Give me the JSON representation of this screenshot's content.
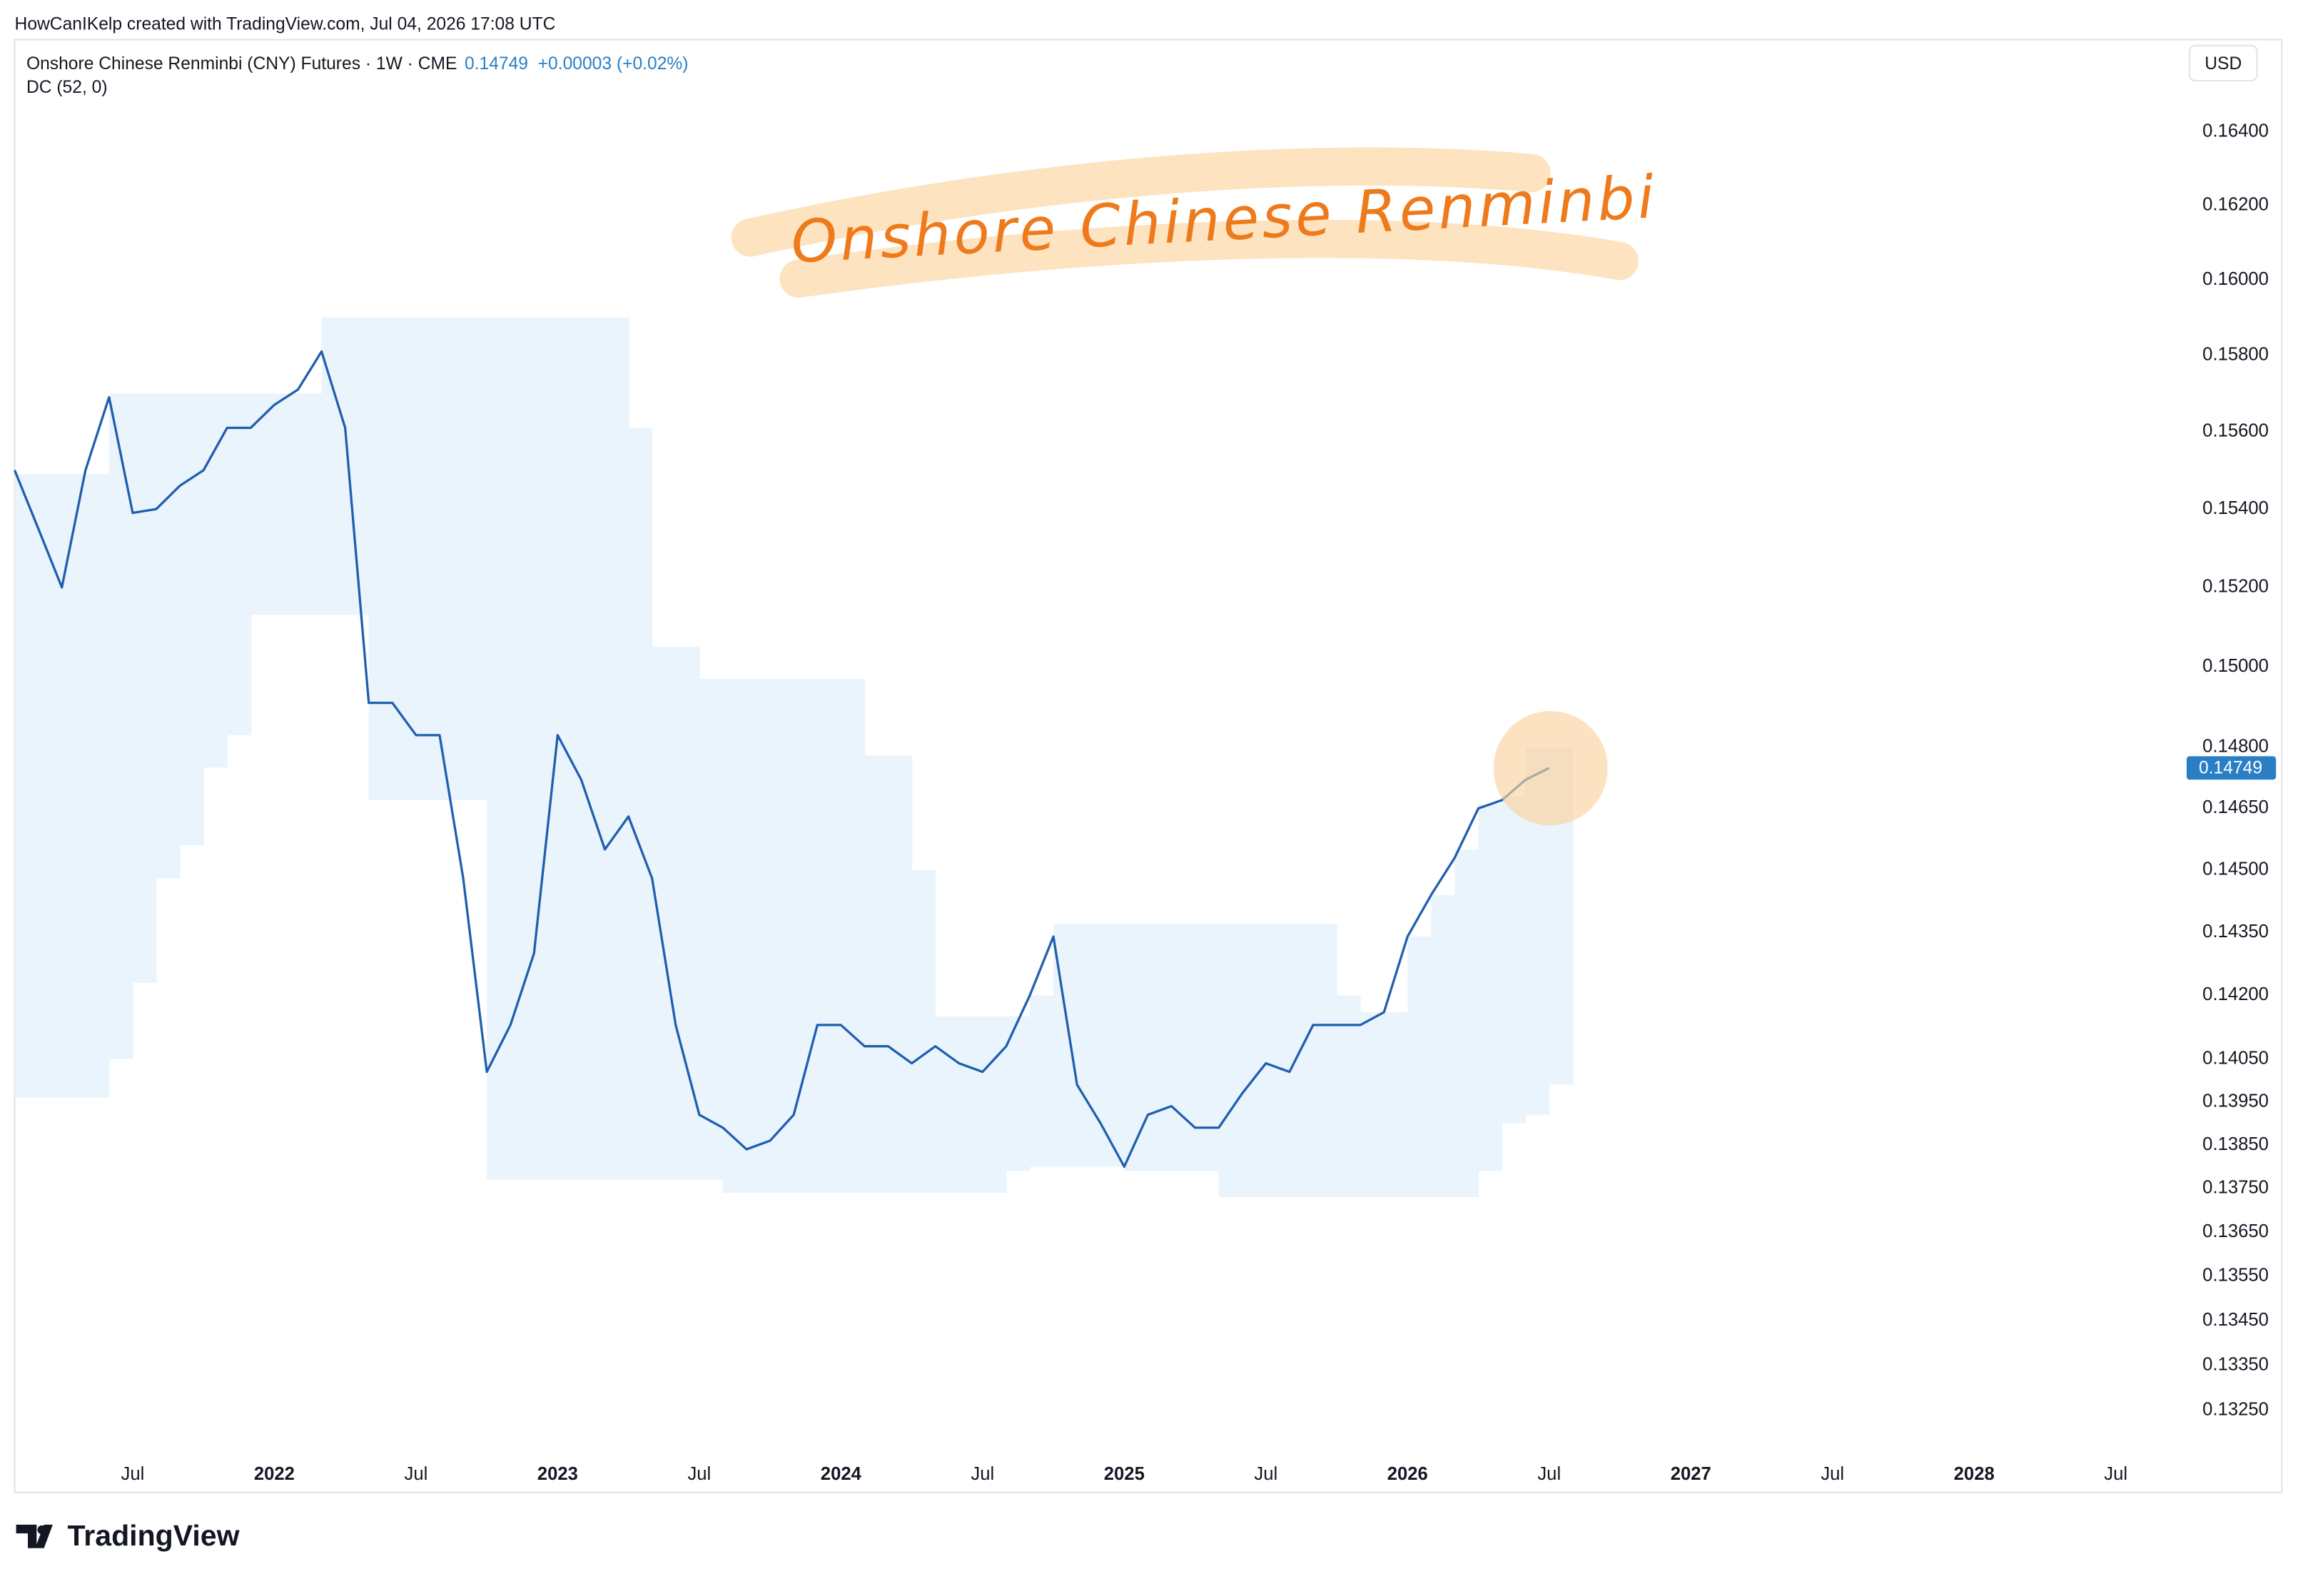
{
  "header": {
    "credit": "HowCanIKelp created with TradingView.com, Jul 04, 2026 17:08 UTC",
    "indicator": "DC (52, 0)",
    "currency": "USD",
    "brand": "TradingView"
  },
  "chart_data": {
    "type": "line",
    "title": "Onshore Chinese Renminbi (CNY) Futures · 1W · CME",
    "change": "+0.00003 (+0.02%)",
    "annotation": "Onshore Chinese Renminbi",
    "log_scale": true,
    "grid": false,
    "x": [
      "2021-02",
      "2021-03",
      "2021-04",
      "2021-05",
      "2021-06",
      "2021-07",
      "2021-08",
      "2021-09",
      "2021-10",
      "2021-11",
      "2021-12",
      "2022-01",
      "2022-02",
      "2022-03",
      "2022-04",
      "2022-05",
      "2022-06",
      "2022-07",
      "2022-08",
      "2022-09",
      "2022-10",
      "2022-11",
      "2022-12",
      "2023-01",
      "2023-02",
      "2023-03",
      "2023-04",
      "2023-05",
      "2023-06",
      "2023-07",
      "2023-08",
      "2023-09",
      "2023-10",
      "2023-11",
      "2023-12",
      "2024-01",
      "2024-02",
      "2024-03",
      "2024-04",
      "2024-05",
      "2024-06",
      "2024-07",
      "2024-08",
      "2024-09",
      "2024-10",
      "2024-11",
      "2024-12",
      "2025-01",
      "2025-02",
      "2025-03",
      "2025-04",
      "2025-05",
      "2025-06",
      "2025-07",
      "2025-08",
      "2025-09",
      "2025-10",
      "2025-11",
      "2025-12",
      "2026-01",
      "2026-02",
      "2026-03",
      "2026-04",
      "2026-05",
      "2026-06",
      "2026-07"
    ],
    "series": [
      {
        "color": "#1f5fae",
        "values": [
          0.155,
          0.1535,
          0.152,
          0.155,
          0.1569,
          0.1539,
          0.154,
          0.1546,
          0.155,
          0.1561,
          0.1561,
          0.1567,
          0.1571,
          0.1581,
          0.1561,
          0.1491,
          0.1491,
          0.1483,
          0.1483,
          0.1448,
          0.1402,
          0.1413,
          0.143,
          0.1483,
          0.1472,
          0.1455,
          0.1463,
          0.1448,
          0.1413,
          0.1392,
          0.1389,
          0.1384,
          0.1386,
          0.1392,
          0.1413,
          0.1413,
          0.1408,
          0.1408,
          0.1404,
          0.1408,
          0.1404,
          0.1402,
          0.1408,
          0.142,
          0.1434,
          0.1399,
          0.139,
          0.138,
          0.1392,
          0.1394,
          0.1389,
          0.1389,
          0.1397,
          0.1404,
          0.1402,
          0.1413,
          0.1413,
          0.1413,
          0.1416,
          0.1434,
          0.1444,
          0.1453,
          0.1465,
          0.1467,
          0.1472,
          0.14749
        ]
      }
    ],
    "channel": {
      "color": "#eaf4fd",
      "upper": [
        0.1549,
        0.1549,
        0.1549,
        0.1549,
        0.157,
        0.157,
        0.157,
        0.157,
        0.157,
        0.157,
        0.157,
        0.157,
        0.157,
        0.159,
        0.159,
        0.159,
        0.159,
        0.159,
        0.159,
        0.159,
        0.159,
        0.159,
        0.159,
        0.159,
        0.159,
        0.159,
        0.1561,
        0.1505,
        0.1505,
        0.1497,
        0.1497,
        0.1497,
        0.1497,
        0.1497,
        0.1497,
        0.1497,
        0.1478,
        0.1478,
        0.145,
        0.1415,
        0.1415,
        0.1415,
        0.1415,
        0.142,
        0.1437,
        0.1437,
        0.1437,
        0.1437,
        0.1437,
        0.1437,
        0.1437,
        0.1437,
        0.1437,
        0.1437,
        0.1437,
        0.1437,
        0.142,
        0.1416,
        0.1416,
        0.1434,
        0.1444,
        0.1455,
        0.1466,
        0.1468,
        0.148,
        0.148
      ],
      "lower": [
        0.1396,
        0.1396,
        0.1396,
        0.1396,
        0.1405,
        0.1423,
        0.1448,
        0.1456,
        0.1475,
        0.1483,
        0.1513,
        0.1513,
        0.1513,
        0.1513,
        0.1513,
        0.1467,
        0.1467,
        0.1467,
        0.1467,
        0.1467,
        0.1377,
        0.1377,
        0.1377,
        0.1377,
        0.1377,
        0.1377,
        0.1377,
        0.1377,
        0.1377,
        0.1377,
        0.1374,
        0.1374,
        0.1374,
        0.1374,
        0.1374,
        0.1374,
        0.1374,
        0.1374,
        0.1374,
        0.1374,
        0.1374,
        0.1374,
        0.1379,
        0.138,
        0.138,
        0.138,
        0.138,
        0.1379,
        0.1379,
        0.1379,
        0.1379,
        0.1373,
        0.1373,
        0.1373,
        0.1373,
        0.1373,
        0.1373,
        0.1373,
        0.1373,
        0.1373,
        0.1373,
        0.1373,
        0.1379,
        0.139,
        0.1392,
        0.1399
      ]
    },
    "xlim": [
      "2021-02",
      "2028-10"
    ],
    "xticks": [
      {
        "value": "2021-07",
        "label": "Jul"
      },
      {
        "value": "2022-01",
        "label": "2022"
      },
      {
        "value": "2022-07",
        "label": "Jul"
      },
      {
        "value": "2023-01",
        "label": "2023"
      },
      {
        "value": "2023-07",
        "label": "Jul"
      },
      {
        "value": "2024-01",
        "label": "2024"
      },
      {
        "value": "2024-07",
        "label": "Jul"
      },
      {
        "value": "2025-01",
        "label": "2025"
      },
      {
        "value": "2025-07",
        "label": "Jul"
      },
      {
        "value": "2026-01",
        "label": "2026"
      },
      {
        "value": "2026-07",
        "label": "Jul"
      },
      {
        "value": "2027-01",
        "label": "2027"
      },
      {
        "value": "2027-07",
        "label": "Jul"
      },
      {
        "value": "2028-01",
        "label": "2028"
      },
      {
        "value": "2028-07",
        "label": "Jul"
      }
    ],
    "ylim": [
      0.1316,
      0.1665
    ],
    "yticks": [
      {
        "value": 0.164,
        "label": "0.16400"
      },
      {
        "value": 0.162,
        "label": "0.16200"
      },
      {
        "value": 0.16,
        "label": "0.16000"
      },
      {
        "value": 0.158,
        "label": "0.15800"
      },
      {
        "value": 0.156,
        "label": "0.15600"
      },
      {
        "value": 0.154,
        "label": "0.15400"
      },
      {
        "value": 0.152,
        "label": "0.15200"
      },
      {
        "value": 0.15,
        "label": "0.15000"
      },
      {
        "value": 0.148,
        "label": "0.14800"
      },
      {
        "value": 0.1465,
        "label": "0.14650"
      },
      {
        "value": 0.145,
        "label": "0.14500"
      },
      {
        "value": 0.1435,
        "label": "0.14350"
      },
      {
        "value": 0.142,
        "label": "0.14200"
      },
      {
        "value": 0.1405,
        "label": "0.14050"
      },
      {
        "value": 0.1395,
        "label": "0.13950"
      },
      {
        "value": 0.1385,
        "label": "0.13850"
      },
      {
        "value": 0.1375,
        "label": "0.13750"
      },
      {
        "value": 0.1365,
        "label": "0.13650"
      },
      {
        "value": 0.1355,
        "label": "0.13550"
      },
      {
        "value": 0.1345,
        "label": "0.13450"
      },
      {
        "value": 0.1335,
        "label": "0.13350"
      },
      {
        "value": 0.1325,
        "label": "0.13250"
      }
    ]
  }
}
